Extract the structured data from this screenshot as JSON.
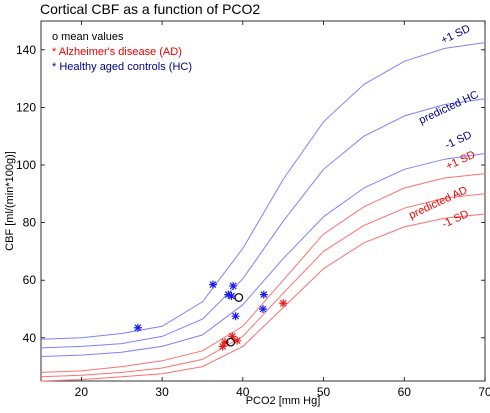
{
  "chart_data": {
    "type": "line",
    "title": "Cortical CBF as a function of PCO2",
    "xlabel": "PCO2 [mm Hg]",
    "ylabel": "CBF [ml/(min*100g)]",
    "xlim": [
      15,
      70
    ],
    "ylim": [
      25,
      150
    ],
    "x_ticks": [
      20,
      30,
      40,
      50,
      60,
      70
    ],
    "y_ticks": [
      40,
      60,
      80,
      100,
      120,
      140
    ],
    "grid": false,
    "colors": {
      "hc": "#8080ff",
      "ad": "#ff7070",
      "hc_marker": "#1a1aee",
      "ad_marker": "#ee1a1a",
      "mean": "#000000",
      "hc_text": "#00008b",
      "ad_text": "#ee0000"
    },
    "x": [
      15,
      20,
      25,
      30,
      35,
      40,
      45,
      50,
      55,
      60,
      65,
      70
    ],
    "series": [
      {
        "name": "+1 SD",
        "group": "HC",
        "values": [
          39.5,
          40,
          41.5,
          44,
          52.5,
          71,
          95,
          115,
          128,
          136,
          140.5,
          142.5
        ]
      },
      {
        "name": "predicted HC",
        "group": "HC",
        "values": [
          36.5,
          37,
          38,
          40.5,
          46.5,
          60.5,
          80.5,
          98.5,
          110,
          117,
          121,
          123
        ]
      },
      {
        "name": "-1 SD",
        "group": "HC",
        "values": [
          33.5,
          34,
          35,
          37,
          41,
          51.5,
          67.5,
          82,
          92,
          98.5,
          102,
          104
        ]
      },
      {
        "name": "+1 SD",
        "group": "AD",
        "values": [
          28,
          28.5,
          30,
          32,
          35.5,
          44,
          60,
          76,
          85.5,
          92,
          95.5,
          97
        ]
      },
      {
        "name": "predicted AD",
        "group": "AD",
        "values": [
          26.5,
          27,
          28,
          29.5,
          32.5,
          40.5,
          55.5,
          70,
          79,
          85,
          88.5,
          90
        ]
      },
      {
        "name": "-1 SD",
        "group": "AD",
        "values": [
          25,
          25.5,
          26.5,
          27.5,
          30,
          37,
          50.5,
          64,
          73,
          78.5,
          81.5,
          83
        ]
      }
    ],
    "scatter": {
      "hc": [
        [
          27,
          43.5
        ],
        [
          36.3,
          58.5
        ],
        [
          38.2,
          55
        ],
        [
          38.8,
          58
        ],
        [
          38.6,
          54.5
        ],
        [
          39.1,
          47.5
        ],
        [
          42.6,
          55
        ],
        [
          42.5,
          50
        ]
      ],
      "ad": [
        [
          37.5,
          37
        ],
        [
          37.8,
          38.5
        ],
        [
          38.7,
          40.5
        ],
        [
          39.3,
          39
        ],
        [
          45,
          52
        ]
      ],
      "mean": [
        [
          38.5,
          38.5
        ],
        [
          39.5,
          54
        ]
      ]
    },
    "legend": [
      {
        "marker": "o",
        "text": "mean values",
        "color": "#000000"
      },
      {
        "marker": "*",
        "text": "Alzheimer's disease (AD)",
        "color": "#ee0000"
      },
      {
        "marker": "*",
        "text": "Healthy aged controls (HC)",
        "color": "#00008b"
      }
    ],
    "legend_position": "top-left",
    "annotations": [
      {
        "text": "+1 SD",
        "color": "#00008b"
      },
      {
        "text": "predicted HC",
        "color": "#00008b"
      },
      {
        "text": "-1 SD",
        "color": "#00008b"
      },
      {
        "text": "+1 SD",
        "color": "#ee0000"
      },
      {
        "text": "predicted AD",
        "color": "#ee0000"
      },
      {
        "text": "-1 SD",
        "color": "#ee0000"
      }
    ]
  }
}
